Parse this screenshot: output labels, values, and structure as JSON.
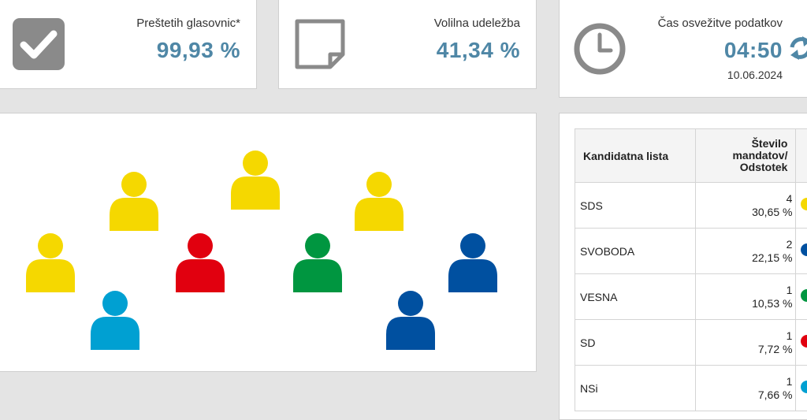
{
  "stats": {
    "counted": {
      "label": "Preštetih glasovnic*",
      "value": "99,93 %"
    },
    "turnout": {
      "label": "Volilna udeležba",
      "value": "41,34 %"
    },
    "refresh": {
      "label": "Čas osvežitve podatkov",
      "time": "04:50",
      "date": "10.06.2024"
    }
  },
  "colors": {
    "SDS": "#f5d800",
    "SVOBODA": "#0050a0",
    "VESNA": "#009640",
    "SD": "#e1000f",
    "NSi": "#00a0d2",
    "accent": "#4f87a6",
    "icon_gray": "#8a8a8a"
  },
  "seat_chart": {
    "seats": [
      {
        "party": "SDS",
        "color": "#f5d800"
      },
      {
        "party": "SDS",
        "color": "#f5d800"
      },
      {
        "party": "SDS",
        "color": "#f5d800"
      },
      {
        "party": "SDS",
        "color": "#f5d800"
      },
      {
        "party": "NSi",
        "color": "#00a0d2"
      },
      {
        "party": "SD",
        "color": "#e1000f"
      },
      {
        "party": "VESNA",
        "color": "#009640"
      },
      {
        "party": "SVOBODA",
        "color": "#0050a0"
      },
      {
        "party": "SVOBODA",
        "color": "#0050a0"
      }
    ]
  },
  "table": {
    "headers": {
      "name": "Kandidatna lista",
      "seats_line1": "Število",
      "seats_line2": "mandatov/",
      "seats_line3": "Odstotek"
    },
    "rows": [
      {
        "name": "SDS",
        "seats": "4",
        "percent": "30,65 %",
        "color": "#f5d800"
      },
      {
        "name": "SVOBODA",
        "seats": "2",
        "percent": "22,15 %",
        "color": "#0050a0"
      },
      {
        "name": "VESNA",
        "seats": "1",
        "percent": "10,53 %",
        "color": "#009640"
      },
      {
        "name": "SD",
        "seats": "1",
        "percent": "7,72 %",
        "color": "#e1000f"
      },
      {
        "name": "NSi",
        "seats": "1",
        "percent": "7,66 %",
        "color": "#00a0d2"
      }
    ]
  }
}
